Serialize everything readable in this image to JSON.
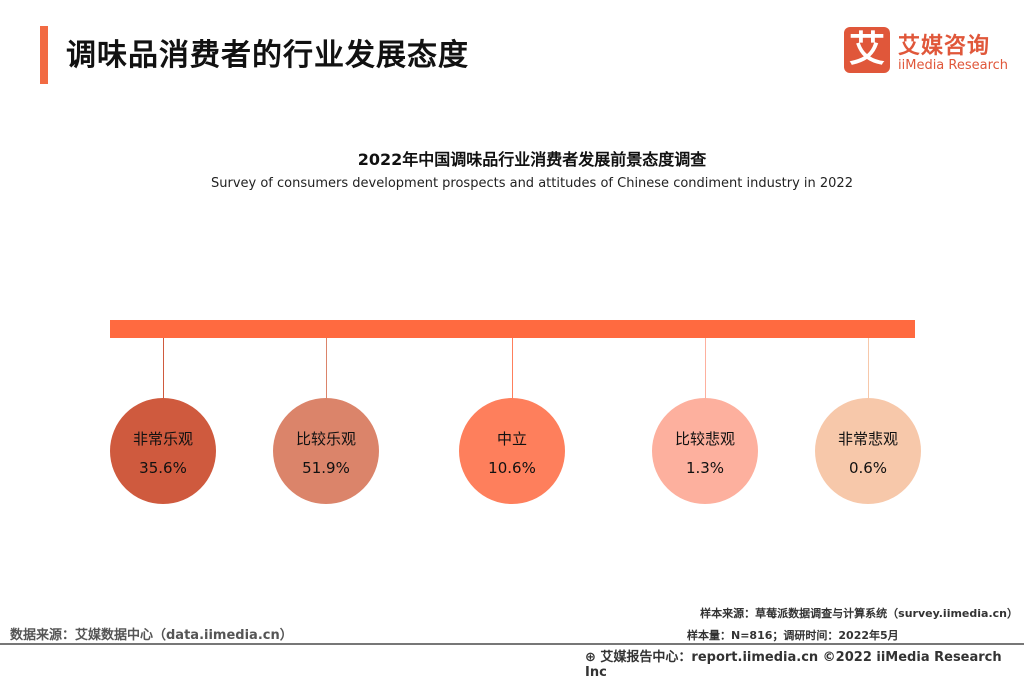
{
  "page_title": "调味品消费者的行业发展态度",
  "logo": {
    "mark": "艾",
    "cn": "艾媒咨询",
    "en": "iiMedia Research"
  },
  "chart_data": {
    "type": "bubble-timeline",
    "title": "2022年中国调味品行业消费者发展前景态度调查",
    "subtitle": "Survey of consumers development prospects and attitudes of Chinese condiment industry in 2022",
    "categories": [
      "非常乐观",
      "比较乐观",
      "中立",
      "比较悲观",
      "非常悲观"
    ],
    "values": [
      35.6,
      51.9,
      10.6,
      1.3,
      0.6
    ],
    "labels": [
      "35.6%",
      "51.9%",
      "10.6%",
      "1.3%",
      "0.6%"
    ],
    "colors": [
      "#cf5a3e",
      "#db846a",
      "#fe7f5c",
      "#fdb09e",
      "#f7c8aa"
    ],
    "bar_color": "#ff6a40"
  },
  "source": "数据来源：艾媒数据中心（data.iimedia.cn）",
  "sample_source": "样本来源：草莓派数据调查与计算系统（survey.iimedia.cn）",
  "sample_size": "样本量：N=816；调研时间：2022年5月",
  "footer": "艾媒报告中心：report.iimedia.cn    ©2022  iiMedia Research  Inc"
}
